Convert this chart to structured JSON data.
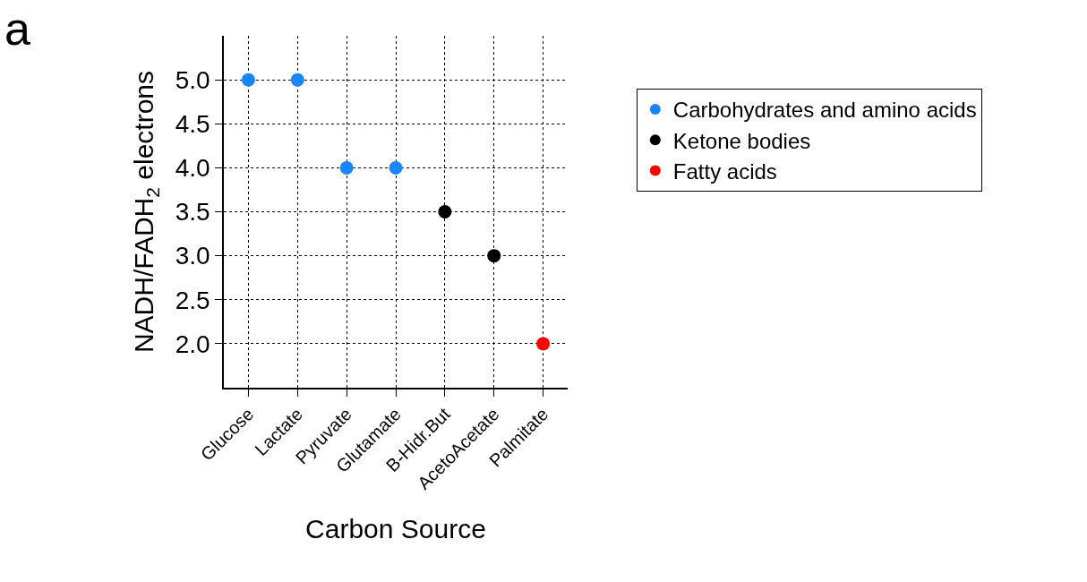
{
  "chart_data": {
    "type": "scatter",
    "xlabel": "Carbon Source",
    "ylabel": "NADH/FADH$_{2}$ electrons",
    "annotations": [
      "a"
    ],
    "categories": [
      "Glucose",
      "Lactate",
      "Pyruvate",
      "Glutamate",
      "B-Hidr.But",
      "AcetoAcetate",
      "Palmitate"
    ],
    "series": [
      {
        "name": "Carbohydrates and amino acids",
        "color": "#1a85ff",
        "values": [
          5.0,
          5.0,
          4.0,
          4.0,
          null,
          null,
          null
        ]
      },
      {
        "name": "Ketone bodies",
        "color": "#000000",
        "values": [
          null,
          null,
          null,
          null,
          3.5,
          3.0,
          null
        ]
      },
      {
        "name": "Fatty acids",
        "color": "#ff0000",
        "values": [
          null,
          null,
          null,
          null,
          null,
          null,
          2.0
        ]
      }
    ],
    "ylim": [
      1.5,
      5.5
    ],
    "yticks": [
      {
        "value": 2,
        "label": "2.0"
      },
      {
        "value": 2.5,
        "label": "2.5"
      },
      {
        "value": 3,
        "label": "3.0"
      },
      {
        "value": 3.5,
        "label": "3.5"
      },
      {
        "value": 4,
        "label": "4.0"
      },
      {
        "value": 4.5,
        "label": "4.5"
      },
      {
        "value": 5,
        "label": "5.0"
      }
    ],
    "grid": true,
    "legend": "top right",
    "marker": "circle"
  }
}
